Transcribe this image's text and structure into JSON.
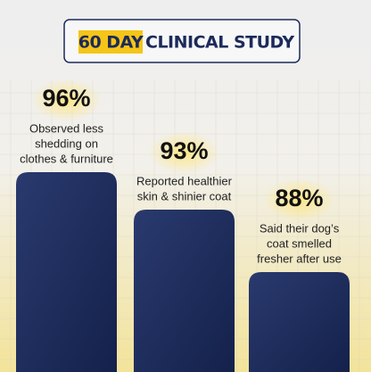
{
  "chart_data": {
    "type": "bar",
    "title_highlight": "60 DAY",
    "title": "CLINICAL STUDY",
    "categories": [
      [
        "Observed less",
        "shedding on",
        "clothes & furniture"
      ],
      [
        "Reported healthier",
        "skin & shinier coat"
      ],
      [
        "Said their dog’s",
        "coat smelled",
        "fresher after use"
      ]
    ],
    "values": [
      96,
      93,
      88
    ],
    "value_labels": [
      "96%",
      "93%",
      "88%"
    ],
    "color": "#1c2a5a",
    "ylim": [
      80,
      100
    ]
  }
}
